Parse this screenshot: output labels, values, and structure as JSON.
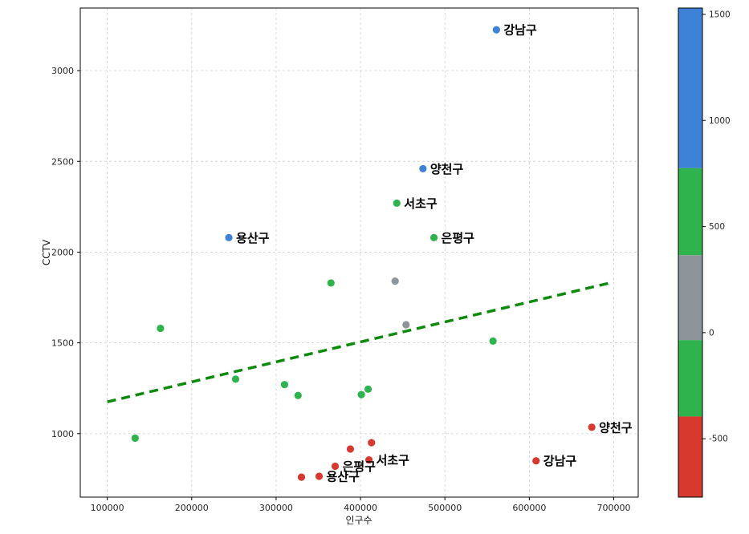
{
  "figure": {
    "background": "#ffffff"
  },
  "chart_data": {
    "type": "scatter",
    "title": "",
    "xlabel": "인구수",
    "ylabel": "CCTV",
    "xlim": [
      68000,
      729000
    ],
    "ylim": [
      650,
      3345
    ],
    "x_ticks": [
      100000,
      200000,
      300000,
      400000,
      500000,
      600000,
      700000
    ],
    "y_ticks": [
      1000,
      1500,
      2000,
      2500,
      3000
    ],
    "grid": true,
    "colors": {
      "blue": "#3d82d6",
      "green": "#2eb34d",
      "gray": "#8d959b",
      "red": "#d8392e",
      "grid_line": "#d4d4d4",
      "axis": "#000000",
      "tick_text": "#262626",
      "label_text": "#000000"
    },
    "points": [
      {
        "x": 561000,
        "y": 3225,
        "color": "blue",
        "label": "강남구"
      },
      {
        "x": 474000,
        "y": 2460,
        "color": "blue",
        "label": "양천구"
      },
      {
        "x": 443000,
        "y": 2270,
        "color": "green",
        "label": "서초구"
      },
      {
        "x": 487000,
        "y": 2080,
        "color": "green",
        "label": "은평구"
      },
      {
        "x": 244000,
        "y": 2080,
        "color": "blue",
        "label": "용산구"
      },
      {
        "x": 441000,
        "y": 1840,
        "color": "gray"
      },
      {
        "x": 365000,
        "y": 1830,
        "color": "green"
      },
      {
        "x": 454000,
        "y": 1600,
        "color": "gray"
      },
      {
        "x": 163000,
        "y": 1580,
        "color": "green"
      },
      {
        "x": 557000,
        "y": 1510,
        "color": "green"
      },
      {
        "x": 252000,
        "y": 1300,
        "color": "green"
      },
      {
        "x": 310000,
        "y": 1270,
        "color": "green"
      },
      {
        "x": 409000,
        "y": 1245,
        "color": "green"
      },
      {
        "x": 401000,
        "y": 1215,
        "color": "green"
      },
      {
        "x": 326000,
        "y": 1210,
        "color": "green"
      },
      {
        "x": 133000,
        "y": 975,
        "color": "green"
      },
      {
        "x": 674000,
        "y": 1035,
        "color": "red",
        "label": "양천구"
      },
      {
        "x": 608000,
        "y": 850,
        "color": "red",
        "label": "강남구"
      },
      {
        "x": 413000,
        "y": 950,
        "color": "red"
      },
      {
        "x": 410000,
        "y": 855,
        "color": "red",
        "label": "서초구"
      },
      {
        "x": 388000,
        "y": 915,
        "color": "red"
      },
      {
        "x": 370000,
        "y": 820,
        "color": "red",
        "label": "은평구"
      },
      {
        "x": 351000,
        "y": 765,
        "color": "red",
        "label": "용산구"
      },
      {
        "x": 330000,
        "y": 760,
        "color": "red"
      }
    ],
    "trend_line": {
      "x1": 100000,
      "y1": 1175,
      "x2": 698000,
      "y2": 1833,
      "color": "#0b8a0b",
      "style": "dashed"
    },
    "colorbar": {
      "vmin": -775,
      "vmax": 1530,
      "ticks": [
        1500,
        1000,
        500,
        0,
        -500
      ],
      "segments": [
        {
          "color": "blue",
          "from": 775,
          "to": 1530
        },
        {
          "color": "green",
          "from": 365,
          "to": 775
        },
        {
          "color": "gray",
          "from": -35,
          "to": 365
        },
        {
          "color": "green",
          "from": -395,
          "to": -35
        },
        {
          "color": "red",
          "from": -775,
          "to": -395
        }
      ]
    }
  }
}
